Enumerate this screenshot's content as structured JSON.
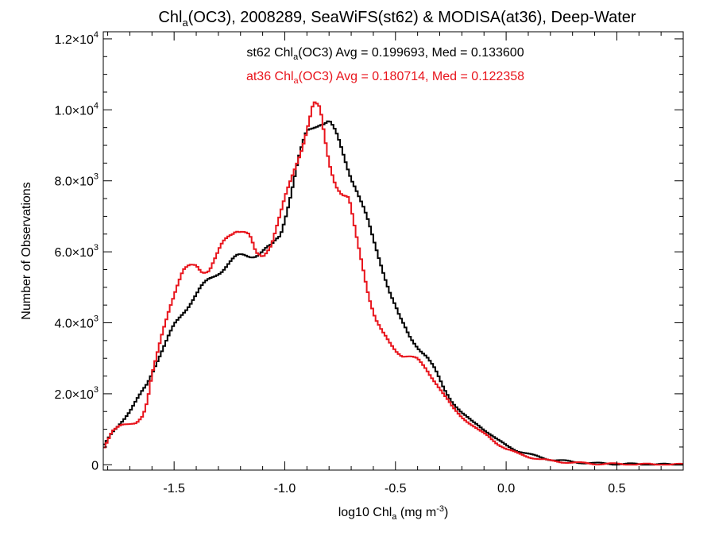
{
  "chart_data": {
    "type": "line",
    "title": {
      "pre": "Chl",
      "sub": "a",
      "post": "(OC3), 2008289, SeaWiFS(st62) & MODISA(at36), Deep-Water"
    },
    "xlabel": {
      "pre": "log10 Chl",
      "sub": "a",
      "mid": " (mg m",
      "sup": "-3",
      "post": ")"
    },
    "ylabel": "Number of Observations",
    "xlim": [
      -1.82,
      0.8
    ],
    "ylim": [
      -150,
      12200
    ],
    "x_ticks": [
      {
        "value": -1.5,
        "label": "-1.5"
      },
      {
        "value": -1.0,
        "label": "-1.0"
      },
      {
        "value": -0.5,
        "label": "-0.5"
      },
      {
        "value": 0.0,
        "label": "0.0"
      },
      {
        "value": 0.5,
        "label": "0.5"
      }
    ],
    "y_ticks": [
      {
        "value": 0,
        "mant": "0",
        "exp": ""
      },
      {
        "value": 2000,
        "mant": "2.0×10",
        "exp": "3"
      },
      {
        "value": 4000,
        "mant": "4.0×10",
        "exp": "3"
      },
      {
        "value": 6000,
        "mant": "6.0×10",
        "exp": "3"
      },
      {
        "value": 8000,
        "mant": "8.0×10",
        "exp": "3"
      },
      {
        "value": 10000,
        "mant": "1.0×10",
        "exp": "4"
      },
      {
        "value": 12000,
        "mant": "1.2×10",
        "exp": "4"
      }
    ],
    "grid": false,
    "legend": "top-center",
    "series": [
      {
        "id": "st62",
        "color": "#000000",
        "label": {
          "pre": "st62 Chl",
          "sub": "a",
          "post": "(OC3) Avg = 0.199693, Med = 0.133600"
        },
        "x": [
          -1.82,
          -1.78,
          -1.74,
          -1.7,
          -1.66,
          -1.62,
          -1.58,
          -1.54,
          -1.5,
          -1.46,
          -1.42,
          -1.38,
          -1.34,
          -1.3,
          -1.26,
          -1.22,
          -1.18,
          -1.14,
          -1.1,
          -1.06,
          -1.02,
          -0.98,
          -0.94,
          -0.9,
          -0.86,
          -0.84,
          -0.8,
          -0.76,
          -0.72,
          -0.68,
          -0.64,
          -0.6,
          -0.56,
          -0.52,
          -0.48,
          -0.44,
          -0.4,
          -0.36,
          -0.32,
          -0.28,
          -0.24,
          -0.2,
          -0.16,
          -0.12,
          -0.08,
          -0.04,
          0.0,
          0.05,
          0.1,
          0.15,
          0.2,
          0.3,
          0.4,
          0.5,
          0.6,
          0.7,
          0.8
        ],
        "y": [
          500,
          900,
          1200,
          1500,
          1900,
          2300,
          2900,
          3400,
          3900,
          4300,
          4650,
          4950,
          5200,
          5450,
          5650,
          5800,
          5900,
          5950,
          6000,
          6100,
          6500,
          7500,
          8500,
          9300,
          9650,
          9750,
          9650,
          9100,
          8500,
          7900,
          7100,
          6300,
          5600,
          4800,
          4100,
          3650,
          3350,
          3050,
          2650,
          2150,
          1750,
          1450,
          1250,
          1100,
          900,
          700,
          550,
          400,
          300,
          220,
          150,
          80,
          40,
          25,
          15,
          8,
          5
        ]
      },
      {
        "id": "at36",
        "color": "#e8141c",
        "label": {
          "pre": "at36 Chl",
          "sub": "a",
          "post": "(OC3) Avg = 0.180714, Med = 0.122358"
        },
        "x": [
          -1.82,
          -1.78,
          -1.74,
          -1.7,
          -1.67,
          -1.64,
          -1.62,
          -1.6,
          -1.58,
          -1.55,
          -1.52,
          -1.49,
          -1.46,
          -1.43,
          -1.4,
          -1.37,
          -1.34,
          -1.31,
          -1.28,
          -1.25,
          -1.22,
          -1.19,
          -1.16,
          -1.13,
          -1.1,
          -1.06,
          -1.02,
          -0.98,
          -0.94,
          -0.9,
          -0.87,
          -0.84,
          -0.82,
          -0.8,
          -0.77,
          -0.74,
          -0.71,
          -0.68,
          -0.65,
          -0.62,
          -0.59,
          -0.56,
          -0.53,
          -0.5,
          -0.47,
          -0.44,
          -0.4,
          -0.36,
          -0.32,
          -0.28,
          -0.24,
          -0.2,
          -0.16,
          -0.12,
          -0.08,
          -0.04,
          0.0,
          0.05,
          0.1,
          0.15,
          0.2,
          0.3,
          0.4,
          0.5,
          0.6,
          0.7,
          0.8
        ],
        "y": [
          450,
          950,
          1100,
          1150,
          1200,
          1400,
          1800,
          2500,
          3000,
          3800,
          4500,
          5000,
          5400,
          5550,
          5650,
          5500,
          5500,
          5800,
          6200,
          6500,
          6700,
          6600,
          6400,
          5900,
          5900,
          6300,
          7000,
          7800,
          8700,
          9500,
          10100,
          9900,
          9200,
          8600,
          8000,
          7600,
          7400,
          6500,
          5700,
          4800,
          4100,
          3700,
          3450,
          3250,
          3100,
          3050,
          2950,
          2700,
          2350,
          1950,
          1600,
          1350,
          1150,
          950,
          800,
          600,
          450,
          320,
          230,
          160,
          110,
          60,
          30,
          20,
          12,
          8,
          5
        ]
      }
    ]
  }
}
